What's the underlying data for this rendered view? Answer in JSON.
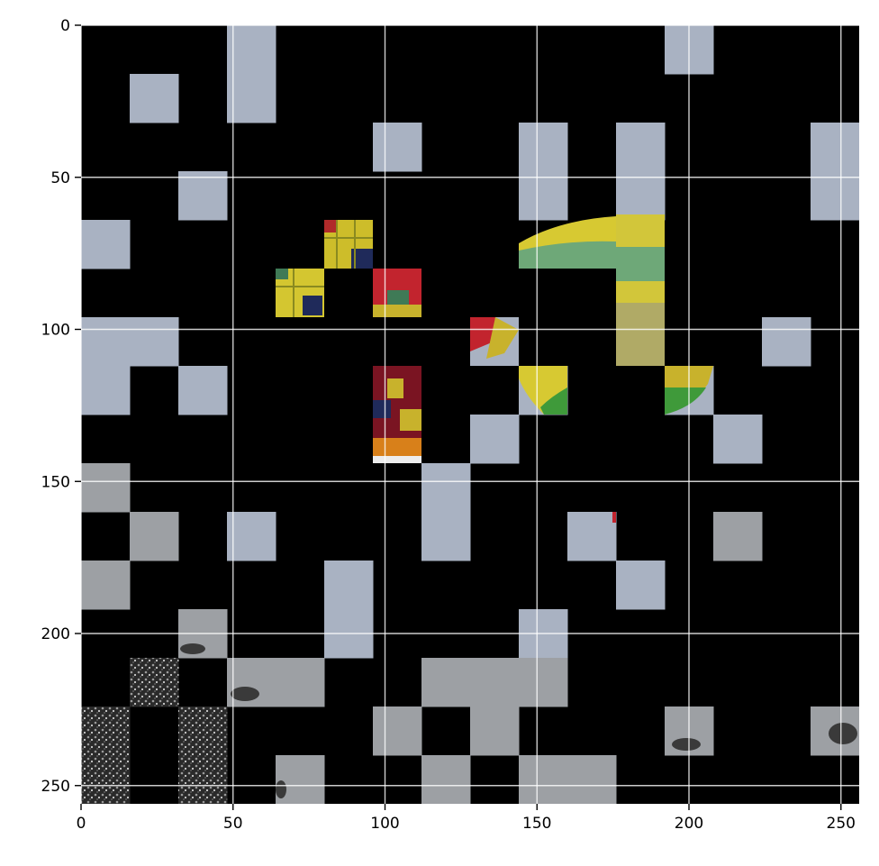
{
  "image": {
    "description_scale": "256x256 patch-masked image shown on pixel-coordinate axes",
    "x_axis": {
      "range": [
        0,
        256
      ],
      "ticks": [
        0,
        50,
        100,
        150,
        200,
        250
      ]
    },
    "y_axis": {
      "range": [
        0,
        256
      ],
      "ticks": [
        0,
        50,
        100,
        150,
        200,
        250
      ],
      "inverted": true
    },
    "grid": true,
    "patch_size": 16,
    "background_mask_color": "#000000",
    "colors": {
      "sky": "#a9b2c2",
      "sky_grey": "#9da0a4",
      "balloon_yellow": "#d7c932",
      "balloon_green": "#6ea878",
      "balloon_red": "#c2242e",
      "balloon_navy": "#1f2a5a",
      "balloon_orange": "#d8801a",
      "tree_dark": "#2a2a2a"
    }
  }
}
